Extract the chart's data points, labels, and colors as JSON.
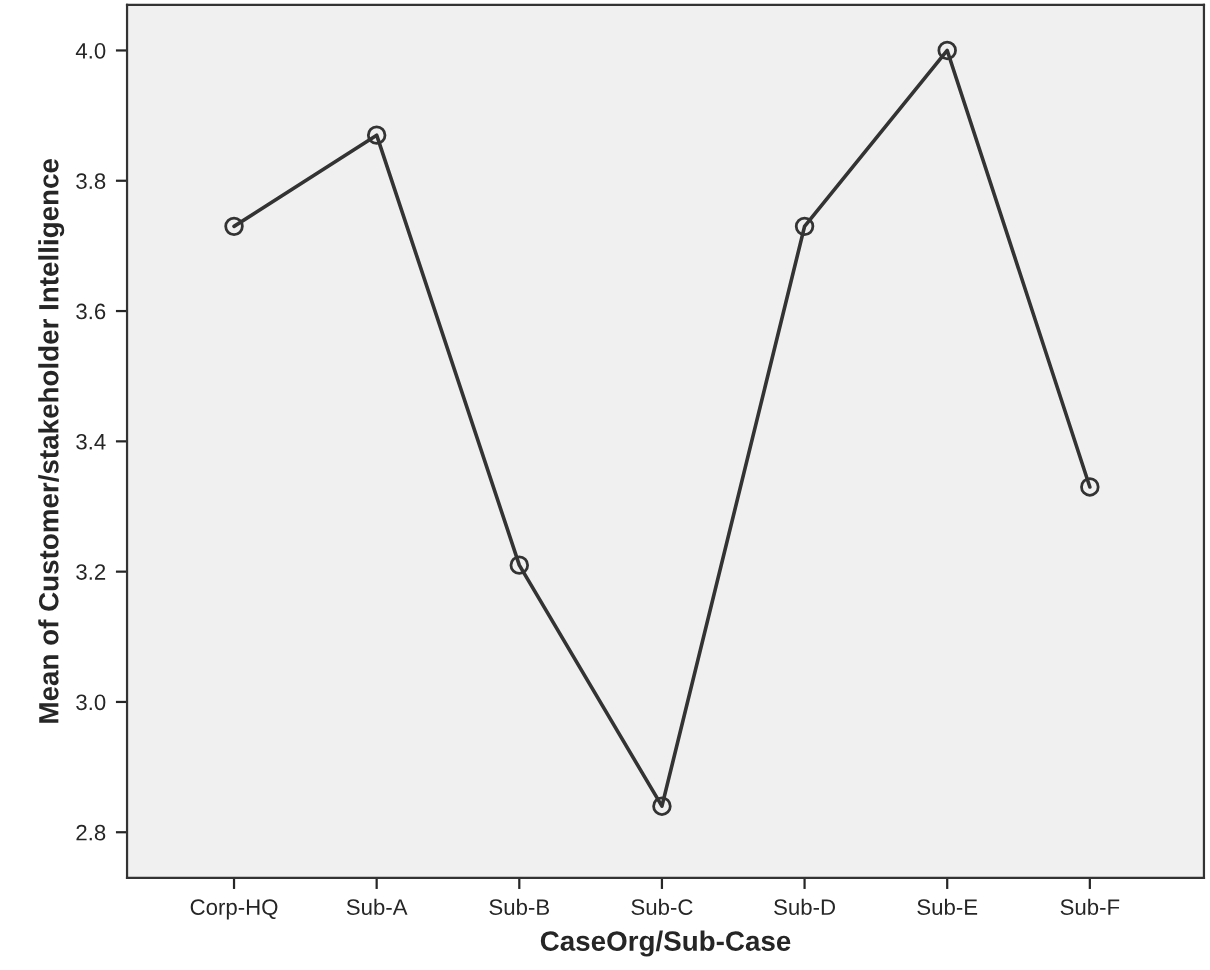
{
  "chart_data": {
    "type": "line",
    "xlabel": "CaseOrg/Sub-Case",
    "ylabel": "Mean of Customer/stakeholder Intelligence",
    "categories": [
      "Corp-HQ",
      "Sub-A",
      "Sub-B",
      "Sub-C",
      "Sub-D",
      "Sub-E",
      "Sub-F"
    ],
    "series": [
      {
        "color": "#333333",
        "values": [
          3.73,
          3.87,
          3.21,
          2.84,
          3.73,
          4.0,
          3.33
        ]
      }
    ],
    "ylim": [
      2.73,
      4.07
    ],
    "yticks": [
      {
        "value": 2.8,
        "label": "2.8"
      },
      {
        "value": 3.0,
        "label": "3.0"
      },
      {
        "value": 3.2,
        "label": "3.2"
      },
      {
        "value": 3.4,
        "label": "3.4"
      },
      {
        "value": 3.6,
        "label": "3.6"
      },
      {
        "value": 3.8,
        "label": "3.8"
      },
      {
        "value": 4.0,
        "label": "4.0"
      }
    ],
    "marker": "circle",
    "line_style": "solid",
    "grid": false,
    "legend": false
  }
}
